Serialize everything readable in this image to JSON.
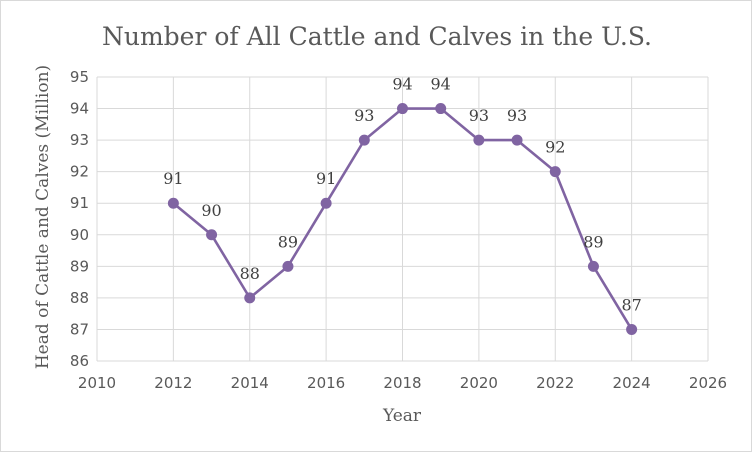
{
  "chart_data": {
    "type": "scatter",
    "title": "Number of All Cattle and Calves in the U.S.",
    "xlabel": "Year",
    "ylabel": "Head of Cattle and Calves (Million)",
    "xlim": [
      2010,
      2026
    ],
    "ylim": [
      86,
      95
    ],
    "x_ticks": [
      2010,
      2012,
      2014,
      2016,
      2018,
      2020,
      2022,
      2024,
      2026
    ],
    "y_ticks": [
      86,
      87,
      88,
      89,
      90,
      91,
      92,
      93,
      94,
      95
    ],
    "grid": true,
    "legend": "none",
    "series": [
      {
        "x": [
          2012,
          2013,
          2014,
          2015,
          2016,
          2017,
          2018,
          2019,
          2020,
          2021,
          2022,
          2023,
          2024
        ],
        "y": [
          91,
          90,
          88,
          89,
          91,
          93,
          94,
          94,
          93,
          93,
          92,
          89,
          87
        ],
        "labels": [
          "91",
          "90",
          "88",
          "89",
          "91",
          "93",
          "94",
          "94",
          "93",
          "93",
          "92",
          "89",
          "87"
        ],
        "color": "#8064a2"
      }
    ]
  }
}
